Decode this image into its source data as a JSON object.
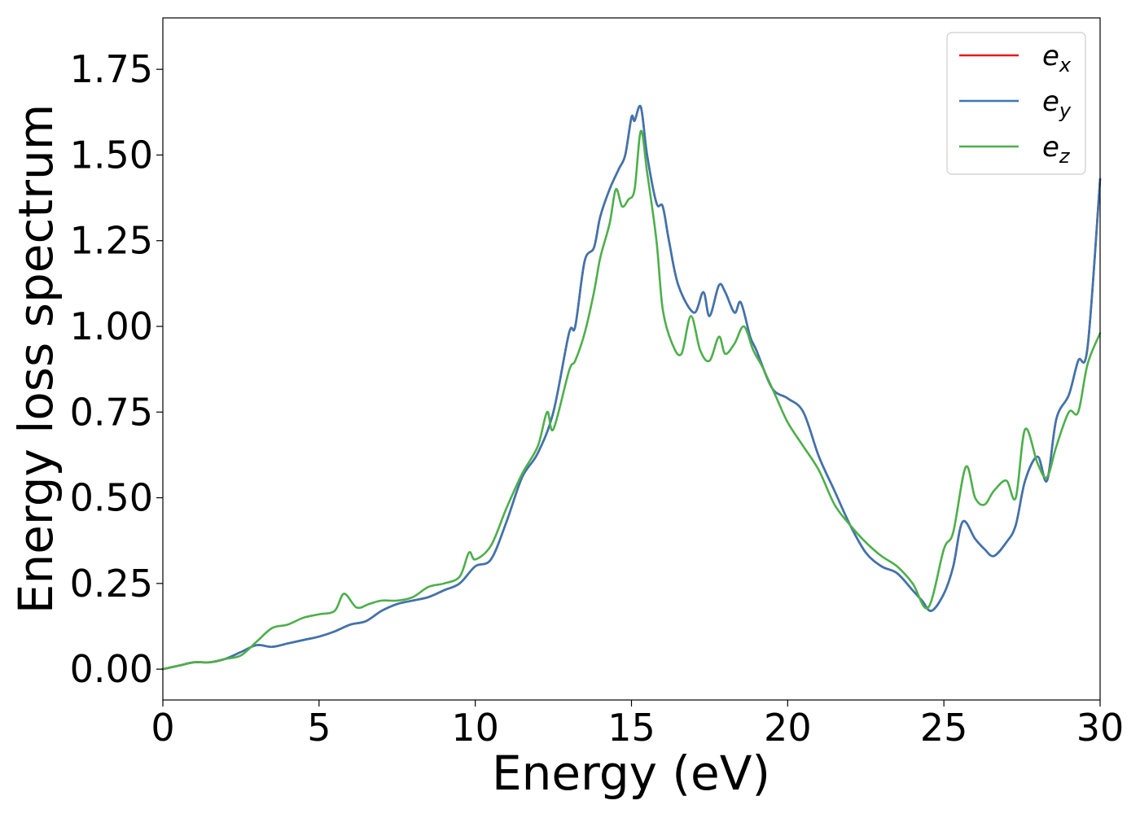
{
  "chart_data": {
    "type": "line",
    "xlabel": "Energy (eV)",
    "ylabel": "Energy loss spectrum",
    "xlim": [
      0,
      30
    ],
    "ylim": [
      -0.09,
      1.9
    ],
    "xticks": [
      0,
      5,
      10,
      15,
      20,
      25,
      30
    ],
    "xtick_labels": [
      "0",
      "5",
      "10",
      "15",
      "20",
      "25",
      "30"
    ],
    "yticks": [
      0.0,
      0.25,
      0.5,
      0.75,
      1.0,
      1.25,
      1.5,
      1.75
    ],
    "ytick_labels": [
      "0.00",
      "0.25",
      "0.50",
      "0.75",
      "1.00",
      "1.25",
      "1.50",
      "1.75"
    ],
    "grid": false,
    "legend_position": "top-right",
    "series": [
      {
        "name": "e_x",
        "label_main": "e",
        "label_sub": "x",
        "color": "#e41a1c",
        "x": [
          0,
          0.5,
          1,
          1.5,
          2,
          2.5,
          3,
          3.5,
          4,
          4.5,
          5,
          5.5,
          6,
          6.5,
          7,
          7.5,
          8,
          8.5,
          9,
          9.5,
          10,
          10.5,
          11,
          11.5,
          12,
          12.5,
          13,
          13.2,
          13.5,
          13.8,
          14,
          14.3,
          14.6,
          14.8,
          15,
          15.1,
          15.3,
          15.5,
          15.8,
          16,
          16.2,
          16.5,
          17,
          17.3,
          17.5,
          17.8,
          18,
          18.3,
          18.5,
          18.8,
          19,
          19.5,
          20,
          20.5,
          21,
          21.5,
          22,
          22.5,
          23,
          23.5,
          24,
          24.3,
          24.6,
          25,
          25.3,
          25.6,
          26,
          26.3,
          26.6,
          27,
          27.3,
          27.6,
          28,
          28.3,
          28.6,
          29,
          29.3,
          29.6,
          30
        ],
        "y": [
          0,
          0.01,
          0.02,
          0.02,
          0.03,
          0.05,
          0.07,
          0.065,
          0.075,
          0.085,
          0.095,
          0.11,
          0.13,
          0.14,
          0.17,
          0.19,
          0.2,
          0.21,
          0.23,
          0.25,
          0.3,
          0.32,
          0.43,
          0.56,
          0.63,
          0.75,
          0.98,
          1.0,
          1.19,
          1.23,
          1.32,
          1.4,
          1.46,
          1.5,
          1.61,
          1.6,
          1.64,
          1.5,
          1.36,
          1.35,
          1.25,
          1.12,
          1.04,
          1.1,
          1.03,
          1.12,
          1.1,
          1.04,
          1.07,
          0.97,
          0.93,
          0.82,
          0.79,
          0.75,
          0.62,
          0.52,
          0.42,
          0.34,
          0.3,
          0.28,
          0.23,
          0.2,
          0.17,
          0.22,
          0.3,
          0.43,
          0.38,
          0.35,
          0.33,
          0.37,
          0.42,
          0.55,
          0.62,
          0.55,
          0.73,
          0.8,
          0.9,
          0.94,
          1.43
        ]
      },
      {
        "name": "e_y",
        "label_main": "e",
        "label_sub": "y",
        "color": "#3a76af",
        "x": [
          0,
          0.5,
          1,
          1.5,
          2,
          2.5,
          3,
          3.5,
          4,
          4.5,
          5,
          5.5,
          6,
          6.5,
          7,
          7.5,
          8,
          8.5,
          9,
          9.5,
          10,
          10.5,
          11,
          11.5,
          12,
          12.5,
          13,
          13.2,
          13.5,
          13.8,
          14,
          14.3,
          14.6,
          14.8,
          15,
          15.1,
          15.3,
          15.5,
          15.8,
          16,
          16.2,
          16.5,
          17,
          17.3,
          17.5,
          17.8,
          18,
          18.3,
          18.5,
          18.8,
          19,
          19.5,
          20,
          20.5,
          21,
          21.5,
          22,
          22.5,
          23,
          23.5,
          24,
          24.3,
          24.6,
          25,
          25.3,
          25.6,
          26,
          26.3,
          26.6,
          27,
          27.3,
          27.6,
          28,
          28.3,
          28.6,
          29,
          29.3,
          29.6,
          30
        ],
        "y": [
          0,
          0.01,
          0.02,
          0.02,
          0.03,
          0.05,
          0.07,
          0.065,
          0.075,
          0.085,
          0.095,
          0.11,
          0.13,
          0.14,
          0.17,
          0.19,
          0.2,
          0.21,
          0.23,
          0.25,
          0.3,
          0.32,
          0.43,
          0.56,
          0.63,
          0.75,
          0.98,
          1.0,
          1.19,
          1.23,
          1.32,
          1.4,
          1.46,
          1.5,
          1.61,
          1.6,
          1.64,
          1.5,
          1.36,
          1.35,
          1.25,
          1.12,
          1.04,
          1.1,
          1.03,
          1.12,
          1.1,
          1.04,
          1.07,
          0.97,
          0.93,
          0.82,
          0.79,
          0.75,
          0.62,
          0.52,
          0.42,
          0.34,
          0.3,
          0.28,
          0.23,
          0.2,
          0.17,
          0.22,
          0.3,
          0.43,
          0.38,
          0.35,
          0.33,
          0.37,
          0.42,
          0.55,
          0.62,
          0.55,
          0.73,
          0.8,
          0.9,
          0.94,
          1.43
        ]
      },
      {
        "name": "e_z",
        "label_main": "e",
        "label_sub": "z",
        "color": "#4daf4a",
        "x": [
          0,
          0.5,
          1,
          1.5,
          2,
          2.5,
          3,
          3.5,
          4,
          4.5,
          5,
          5.5,
          5.8,
          6.2,
          6.6,
          7,
          7.5,
          8,
          8.5,
          9,
          9.5,
          9.8,
          10,
          10.5,
          11,
          11.5,
          12,
          12.3,
          12.5,
          13,
          13.2,
          13.5,
          13.8,
          14,
          14.3,
          14.5,
          14.7,
          14.9,
          15.1,
          15.3,
          15.5,
          15.8,
          16,
          16.3,
          16.6,
          16.9,
          17.2,
          17.5,
          17.8,
          18,
          18.3,
          18.6,
          18.9,
          19.2,
          19.6,
          20,
          20.5,
          21,
          21.5,
          22,
          22.5,
          23,
          23.5,
          24,
          24.5,
          25,
          25.3,
          25.7,
          26,
          26.3,
          26.6,
          27,
          27.3,
          27.6,
          28,
          28.3,
          28.6,
          29,
          29.3,
          29.6,
          30
        ],
        "y": [
          0,
          0.01,
          0.02,
          0.02,
          0.03,
          0.04,
          0.08,
          0.12,
          0.13,
          0.15,
          0.16,
          0.17,
          0.22,
          0.18,
          0.19,
          0.2,
          0.2,
          0.21,
          0.24,
          0.25,
          0.27,
          0.34,
          0.32,
          0.36,
          0.47,
          0.57,
          0.65,
          0.75,
          0.7,
          0.87,
          0.9,
          0.98,
          1.1,
          1.2,
          1.3,
          1.4,
          1.35,
          1.37,
          1.4,
          1.57,
          1.45,
          1.25,
          1.05,
          0.95,
          0.92,
          1.03,
          0.93,
          0.9,
          0.97,
          0.92,
          0.95,
          1.0,
          0.93,
          0.88,
          0.8,
          0.72,
          0.65,
          0.58,
          0.48,
          0.42,
          0.37,
          0.33,
          0.3,
          0.25,
          0.18,
          0.35,
          0.4,
          0.59,
          0.5,
          0.48,
          0.52,
          0.55,
          0.5,
          0.7,
          0.6,
          0.56,
          0.65,
          0.75,
          0.75,
          0.89,
          0.98
        ]
      }
    ]
  }
}
